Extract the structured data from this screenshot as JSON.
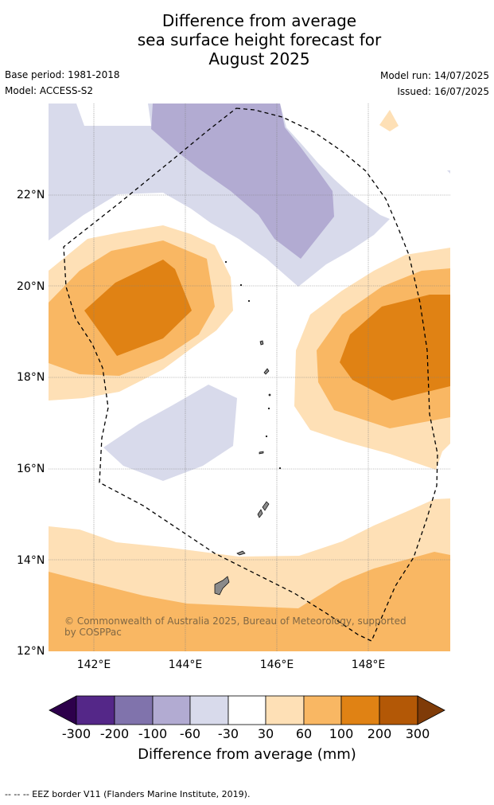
{
  "title_lines": [
    "Difference from average",
    "sea surface height forecast for",
    "August 2025"
  ],
  "meta": {
    "base_period": "Base period: 1981-2018",
    "model": "Model: ACCESS-S2",
    "model_run": "Model run: 14/07/2025",
    "issued": "Issued: 16/07/2025"
  },
  "axes": {
    "lat_ticks": [
      "22°N",
      "20°N",
      "18°N",
      "16°N",
      "14°N",
      "12°N"
    ],
    "lon_ticks": [
      "142°E",
      "144°E",
      "146°E",
      "148°E"
    ]
  },
  "copyright": "© Commonwealth of Australia 2025, Bureau of Meteorology, supported by COSPPac",
  "colorbar": {
    "ticks": [
      "-300",
      "-200",
      "-100",
      "-60",
      "-30",
      "30",
      "60",
      "100",
      "200",
      "300"
    ],
    "label": "Difference from average (mm)",
    "colors": {
      "below_-300": "#2d004b",
      "-300_-200": "#542788",
      "-200_-100": "#8073ac",
      "-100_-60": "#b2abd2",
      "-60_-30": "#d8daeb",
      "-30_30": "#ffffff",
      "30_60": "#fee0b6",
      "60_100": "#f9b763",
      "100_200": "#e08214",
      "200_300": "#b35806",
      "above_300": "#7f3b08"
    }
  },
  "footnote": "--  --  -- EEZ border V11 (Flanders Marine Institute, 2019).",
  "map_extent": {
    "lon_min": 141,
    "lon_max": 149.8,
    "lat_min": 12,
    "lat_max": 24,
    "grid_lons": [
      142,
      144,
      146,
      148
    ],
    "grid_lats": [
      22,
      20,
      18,
      16,
      14,
      12
    ]
  }
}
